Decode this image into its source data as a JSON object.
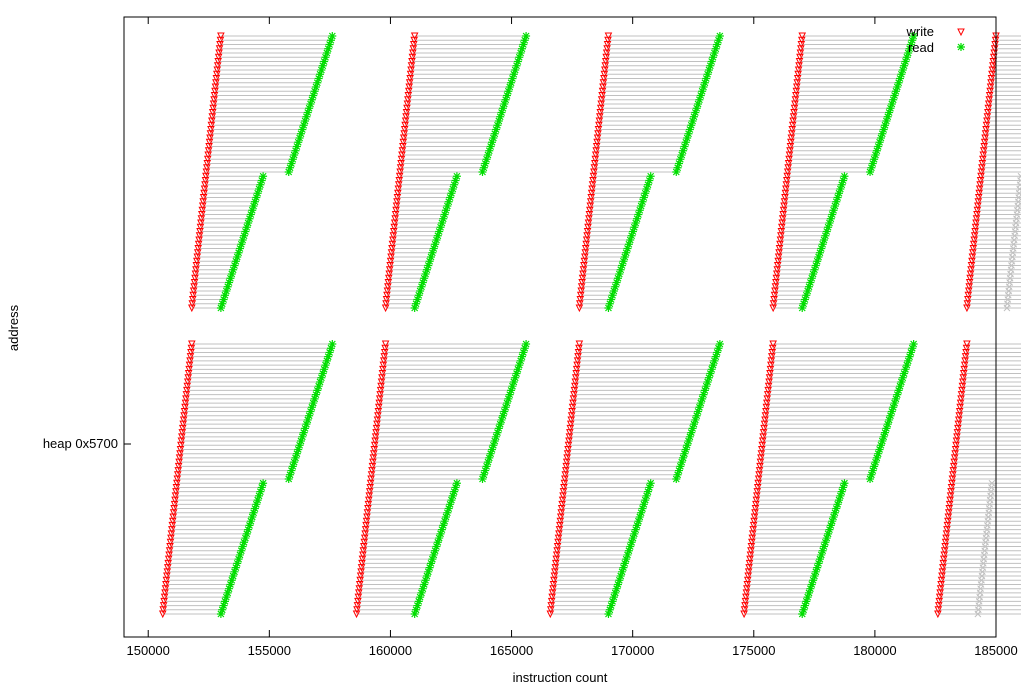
{
  "chart_data": {
    "type": "scatter",
    "xlabel": "instruction count",
    "ylabel": "address",
    "xlim": [
      149000,
      185000
    ],
    "x_ticks": [
      "150000",
      "155000",
      "160000",
      "165000",
      "170000",
      "175000",
      "180000",
      "185000"
    ],
    "x_tick_values": [
      150000,
      155000,
      160000,
      165000,
      170000,
      175000,
      180000,
      185000
    ],
    "y_ticks": [
      {
        "label": "heap 0x5700"
      }
    ],
    "grid": false,
    "legend_placement": "top-right",
    "series": [
      {
        "name": "write",
        "marker": "triangle-down",
        "color": "#ff0000"
      },
      {
        "name": "read",
        "marker": "asterisk",
        "color": "#00dd00"
      }
    ],
    "dependency_line_color": "#c0c0c0",
    "bursts": [
      {
        "region": "upper",
        "write_x": [
          153000,
          151800
        ],
        "read_x_upper": [
          157600,
          155800
        ],
        "read_x_lower": [
          154800,
          153000
        ]
      },
      {
        "region": "upper",
        "write_x": [
          161000,
          159800
        ],
        "read_x_upper": [
          165600,
          163800
        ],
        "read_x_lower": [
          162800,
          161000
        ]
      },
      {
        "region": "upper",
        "write_x": [
          169000,
          167800
        ],
        "read_x_upper": [
          173600,
          171800
        ],
        "read_x_lower": [
          170800,
          169000
        ]
      },
      {
        "region": "upper",
        "write_x": [
          177000,
          175800
        ],
        "read_x_upper": [
          181600,
          179800
        ],
        "read_x_lower": [
          178800,
          177000
        ]
      },
      {
        "region": "upper",
        "write_x": [
          185000,
          183800
        ],
        "read_x_upper": null,
        "read_x_lower": null
      },
      {
        "region": "lower",
        "write_x": [
          151800,
          150600
        ],
        "read_x_upper": [
          157600,
          155800
        ],
        "read_x_lower": [
          154800,
          153000
        ]
      },
      {
        "region": "lower",
        "write_x": [
          159800,
          158600
        ],
        "read_x_upper": [
          165600,
          163800
        ],
        "read_x_lower": [
          162800,
          161000
        ]
      },
      {
        "region": "lower",
        "write_x": [
          167800,
          166600
        ],
        "read_x_upper": [
          173600,
          171800
        ],
        "read_x_lower": [
          170800,
          169000
        ]
      },
      {
        "region": "lower",
        "write_x": [
          175800,
          174600
        ],
        "read_x_upper": [
          181600,
          179800
        ],
        "read_x_lower": [
          178800,
          177000
        ]
      },
      {
        "region": "lower",
        "write_x": [
          183800,
          182600
        ],
        "read_x_upper": null,
        "read_x_lower": null
      }
    ]
  }
}
